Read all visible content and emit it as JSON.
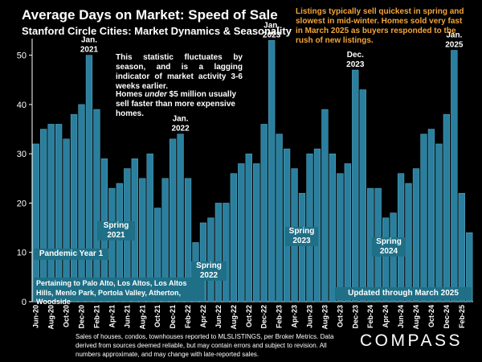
{
  "header": {
    "title": "Average Days on Market:  Speed of Sale",
    "subtitle": "Stanford Circle Cities: Market Dynamics & Seasonality"
  },
  "notes": {
    "orange": "Listings typically sell quickest in spring and slowest in mid-winter. Homes sold very fast in March 2025 as buyers responded to the rush of new listings.",
    "fluctuates": "This statistic fluctuates by season, and is a lagging indicator of market activity 3-6 weeks earlier.",
    "under_prefix": "Homes ",
    "under_word": "under",
    "under_suffix": " $5 million usually sell faster than more expensive homes."
  },
  "boxes": {
    "pandemic": "Pandemic Year 1",
    "pertaining": "Pertaining to Palo Alto, Los Altos, Los Altos Hills, Menlo Park, Portola Valley, Atherton, Woodside",
    "updated": "Updated through March 2025",
    "spring21": [
      "Spring",
      "2021"
    ],
    "spring22": [
      "Spring",
      "2022"
    ],
    "spring23": [
      "Spring",
      "2023"
    ],
    "spring24": [
      "Spring",
      "2024"
    ]
  },
  "footer": "Sales of houses, condos, townhouses reported to MLSLISTINGS, per Broker Metrics. Data derived from sources deemed reliable, but may contain errors and subject to revision. All numbers approximate, and may change with late-reported sales.",
  "logo": "COMPASS",
  "colors": {
    "background": "#000000",
    "bar": "#2a7f9e",
    "bar_edge": "#5fb0c8",
    "note_orange": "#f4a43a",
    "box_fill": "#1f6f86",
    "text": "#ffffff"
  },
  "chart_data": {
    "type": "bar",
    "categories": [
      "Jun-20",
      "Jul-20",
      "Aug-20",
      "Sep-20",
      "Oct-20",
      "Nov-20",
      "Dec-20",
      "Jan-21",
      "Feb-21",
      "Mar-21",
      "Apr-21",
      "May-21",
      "Jun-21",
      "Jul-21",
      "Aug-21",
      "Sep-21",
      "Oct-21",
      "Nov-21",
      "Dec-21",
      "Jan-22",
      "Feb-22",
      "Mar-22",
      "Apr-22",
      "May-22",
      "Jun-22",
      "Jul-22",
      "Aug-22",
      "Sep-22",
      "Oct-22",
      "Nov-22",
      "Dec-22",
      "Jan-23",
      "Feb-23",
      "Mar-23",
      "Apr-23",
      "May-23",
      "Jun-23",
      "Jul-23",
      "Aug-23",
      "Sep-23",
      "Oct-23",
      "Nov-23",
      "Dec-23",
      "Jan-24",
      "Feb-24",
      "Mar-24",
      "Apr-24",
      "May-24",
      "Jun-24",
      "Jul-24",
      "Aug-24",
      "Sep-24",
      "Oct-24",
      "Nov-24",
      "Dec-24",
      "Jan-25",
      "Feb-25",
      "Mar-25"
    ],
    "values": [
      32,
      35,
      36,
      36,
      33,
      38,
      40,
      50,
      39,
      29,
      23,
      24,
      27,
      29,
      25,
      30,
      19,
      25,
      33,
      34,
      25,
      12,
      16,
      17,
      20,
      20,
      26,
      28,
      30,
      28,
      36,
      53,
      34,
      31,
      27,
      22,
      30,
      31,
      39,
      30,
      26,
      28,
      47,
      43,
      23,
      23,
      17,
      18,
      26,
      24,
      27,
      34,
      35,
      32,
      38,
      51,
      22,
      14
    ],
    "tick_labels": [
      "Jun-20",
      "Aug-20",
      "Oct-20",
      "Dec-20",
      "Feb-21",
      "Apr-21",
      "Jun-21",
      "Aug-21",
      "Oct-21",
      "Dec-21",
      "Feb-22",
      "Apr-22",
      "Jun-22",
      "Aug-22",
      "Oct-22",
      "Dec-22",
      "Feb-23",
      "Apr-23",
      "Jun-23",
      "Aug-23",
      "Oct-23",
      "Dec-23",
      "Feb-24",
      "Apr-24",
      "Jun-24",
      "Aug-24",
      "Oct-24",
      "Dec-24",
      "Feb-25"
    ],
    "title": "Average Days on Market:  Speed of Sale",
    "xlabel": "",
    "ylabel": "",
    "ylim": [
      0,
      55
    ],
    "yticks": [
      0,
      10,
      20,
      30,
      40,
      50
    ],
    "grid": false,
    "legend": "none",
    "annotations": [
      {
        "category": "Jan-21",
        "lines": [
          "Jan.",
          "2021"
        ]
      },
      {
        "category": "Jan-22",
        "lines": [
          "Jan.",
          "2022"
        ]
      },
      {
        "category": "Jan-23",
        "lines": [
          "Jan.",
          "2023"
        ]
      },
      {
        "category": "Dec-23",
        "lines": [
          "Dec.",
          "2023"
        ]
      },
      {
        "category": "Jan-25",
        "lines": [
          "Jan.",
          "2025"
        ]
      }
    ]
  }
}
